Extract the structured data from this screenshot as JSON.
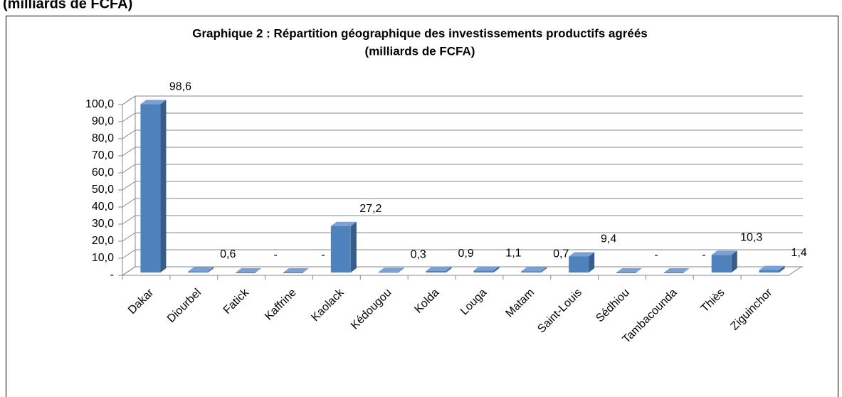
{
  "heading": "(milliards de FCFA)",
  "chart_data": {
    "type": "bar",
    "title": "Graphique 2 : Répartition géographique des investissements productifs agréés",
    "subtitle": "(milliards de FCFA)",
    "categories": [
      "Dakar",
      "Diourbel",
      "Fatick",
      "Kaffrine",
      "Kaolack",
      "Kédougou",
      "Kolda",
      "Louga",
      "Matam",
      "Saint-Louis",
      "Sédhiou",
      "Tambacounda",
      "Thiès",
      "Ziguinchor"
    ],
    "values": [
      98.6,
      0.6,
      0,
      0,
      27.2,
      0.3,
      0.9,
      1.1,
      0.7,
      9.4,
      0,
      0,
      10.3,
      1.4
    ],
    "value_labels": [
      "98,6",
      "0,6",
      "-",
      "-",
      "27,2",
      "0,3",
      "0,9",
      "1,1",
      "0,7",
      "9,4",
      "-",
      "-",
      "10,3",
      "1,4"
    ],
    "color": "#4f81bd",
    "ylim": [
      0,
      100
    ],
    "yticks": [
      {
        "value": 0,
        "label": "-"
      },
      {
        "value": 10,
        "label": "10,0"
      },
      {
        "value": 20,
        "label": "20,0"
      },
      {
        "value": 30,
        "label": "30,0"
      },
      {
        "value": 40,
        "label": "40,0"
      },
      {
        "value": 50,
        "label": "50,0"
      },
      {
        "value": 60,
        "label": "60,0"
      },
      {
        "value": 70,
        "label": "70,0"
      },
      {
        "value": 80,
        "label": "80,0"
      },
      {
        "value": 90,
        "label": "90,0"
      },
      {
        "value": 100,
        "label": "100,0"
      }
    ],
    "grid": true
  }
}
